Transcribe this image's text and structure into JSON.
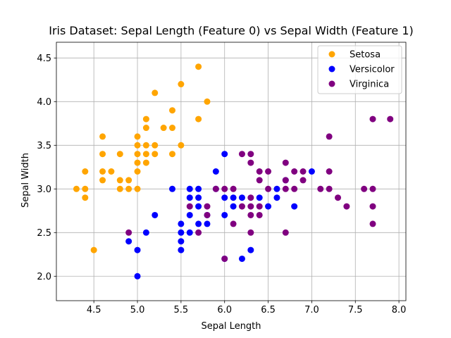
{
  "chart_data": {
    "type": "scatter",
    "title": "Iris Dataset: Sepal Length (Feature 0) vs Sepal Width (Feature 1)",
    "xlabel": "Sepal Length",
    "ylabel": "Sepal Width",
    "xlim": [
      4.07,
      8.08
    ],
    "ylim": [
      1.72,
      4.68
    ],
    "grid": true,
    "legend_position": "top-right",
    "x_ticks": [
      4.5,
      5.0,
      5.5,
      6.0,
      6.5,
      7.0,
      7.5,
      8.0
    ],
    "x_tick_labels": [
      "4.5",
      "5.0",
      "5.5",
      "6.0",
      "6.5",
      "7.0",
      "7.5",
      "8.0"
    ],
    "y_ticks": [
      2.0,
      2.5,
      3.0,
      3.5,
      4.0,
      4.5
    ],
    "y_tick_labels": [
      "2.0",
      "2.5",
      "3.0",
      "3.5",
      "4.0",
      "4.5"
    ],
    "series": [
      {
        "name": "Setosa",
        "color": "#FFA500",
        "points": [
          [
            4.3,
            3.0
          ],
          [
            4.4,
            3.2
          ],
          [
            4.4,
            3.0
          ],
          [
            4.4,
            2.9
          ],
          [
            4.5,
            2.3
          ],
          [
            4.6,
            3.6
          ],
          [
            4.6,
            3.4
          ],
          [
            4.6,
            3.2
          ],
          [
            4.6,
            3.1
          ],
          [
            4.7,
            3.2
          ],
          [
            4.8,
            3.4
          ],
          [
            4.8,
            3.1
          ],
          [
            4.8,
            3.0
          ],
          [
            4.9,
            3.1
          ],
          [
            4.9,
            3.0
          ],
          [
            5.0,
            3.6
          ],
          [
            5.0,
            3.5
          ],
          [
            5.0,
            3.4
          ],
          [
            5.0,
            3.3
          ],
          [
            5.0,
            3.2
          ],
          [
            5.0,
            3.0
          ],
          [
            5.1,
            3.8
          ],
          [
            5.1,
            3.7
          ],
          [
            5.1,
            3.5
          ],
          [
            5.1,
            3.4
          ],
          [
            5.1,
            3.3
          ],
          [
            5.2,
            4.1
          ],
          [
            5.2,
            3.5
          ],
          [
            5.2,
            3.4
          ],
          [
            5.3,
            3.7
          ],
          [
            5.4,
            3.9
          ],
          [
            5.4,
            3.7
          ],
          [
            5.4,
            3.4
          ],
          [
            5.5,
            4.2
          ],
          [
            5.5,
            3.5
          ],
          [
            5.7,
            4.4
          ],
          [
            5.7,
            3.8
          ],
          [
            5.8,
            4.0
          ]
        ]
      },
      {
        "name": "Versicolor",
        "color": "#0000FF",
        "points": [
          [
            4.9,
            2.4
          ],
          [
            5.0,
            2.3
          ],
          [
            5.0,
            2.0
          ],
          [
            5.1,
            2.5
          ],
          [
            5.2,
            2.7
          ],
          [
            5.4,
            3.0
          ],
          [
            5.5,
            2.6
          ],
          [
            5.5,
            2.5
          ],
          [
            5.5,
            2.4
          ],
          [
            5.5,
            2.3
          ],
          [
            5.6,
            3.0
          ],
          [
            5.6,
            2.9
          ],
          [
            5.6,
            2.7
          ],
          [
            5.6,
            2.5
          ],
          [
            5.7,
            3.0
          ],
          [
            5.7,
            2.9
          ],
          [
            5.7,
            2.8
          ],
          [
            5.7,
            2.6
          ],
          [
            5.8,
            2.7
          ],
          [
            5.8,
            2.6
          ],
          [
            5.9,
            3.2
          ],
          [
            5.9,
            3.0
          ],
          [
            6.0,
            3.4
          ],
          [
            6.0,
            2.9
          ],
          [
            6.0,
            2.7
          ],
          [
            6.0,
            2.2
          ],
          [
            6.1,
            2.9
          ],
          [
            6.1,
            2.8
          ],
          [
            6.2,
            2.9
          ],
          [
            6.2,
            2.2
          ],
          [
            6.3,
            2.3
          ],
          [
            6.4,
            2.9
          ],
          [
            6.5,
            2.8
          ],
          [
            6.6,
            3.0
          ],
          [
            6.6,
            2.9
          ],
          [
            6.7,
            3.1
          ],
          [
            6.8,
            2.8
          ],
          [
            7.0,
            3.2
          ]
        ]
      },
      {
        "name": "Virginica",
        "color": "#800080",
        "points": [
          [
            4.9,
            2.5
          ],
          [
            5.6,
            2.8
          ],
          [
            5.7,
            2.5
          ],
          [
            5.8,
            2.8
          ],
          [
            5.8,
            2.7
          ],
          [
            5.9,
            3.0
          ],
          [
            6.0,
            3.0
          ],
          [
            6.0,
            2.2
          ],
          [
            6.1,
            3.0
          ],
          [
            6.1,
            2.6
          ],
          [
            6.2,
            3.4
          ],
          [
            6.2,
            2.8
          ],
          [
            6.3,
            3.4
          ],
          [
            6.3,
            3.3
          ],
          [
            6.3,
            2.9
          ],
          [
            6.3,
            2.8
          ],
          [
            6.3,
            2.7
          ],
          [
            6.3,
            2.5
          ],
          [
            6.4,
            3.2
          ],
          [
            6.4,
            3.1
          ],
          [
            6.4,
            2.8
          ],
          [
            6.4,
            2.7
          ],
          [
            6.5,
            3.2
          ],
          [
            6.5,
            3.0
          ],
          [
            6.7,
            3.3
          ],
          [
            6.7,
            3.1
          ],
          [
            6.7,
            3.0
          ],
          [
            6.7,
            2.5
          ],
          [
            6.8,
            3.2
          ],
          [
            6.8,
            3.0
          ],
          [
            6.9,
            3.2
          ],
          [
            6.9,
            3.1
          ],
          [
            7.1,
            3.0
          ],
          [
            7.2,
            3.6
          ],
          [
            7.2,
            3.2
          ],
          [
            7.2,
            3.0
          ],
          [
            7.3,
            2.9
          ],
          [
            7.4,
            2.8
          ],
          [
            7.6,
            3.0
          ],
          [
            7.7,
            3.8
          ],
          [
            7.7,
            3.0
          ],
          [
            7.7,
            2.8
          ],
          [
            7.7,
            2.6
          ],
          [
            7.9,
            3.8
          ]
        ]
      }
    ]
  }
}
